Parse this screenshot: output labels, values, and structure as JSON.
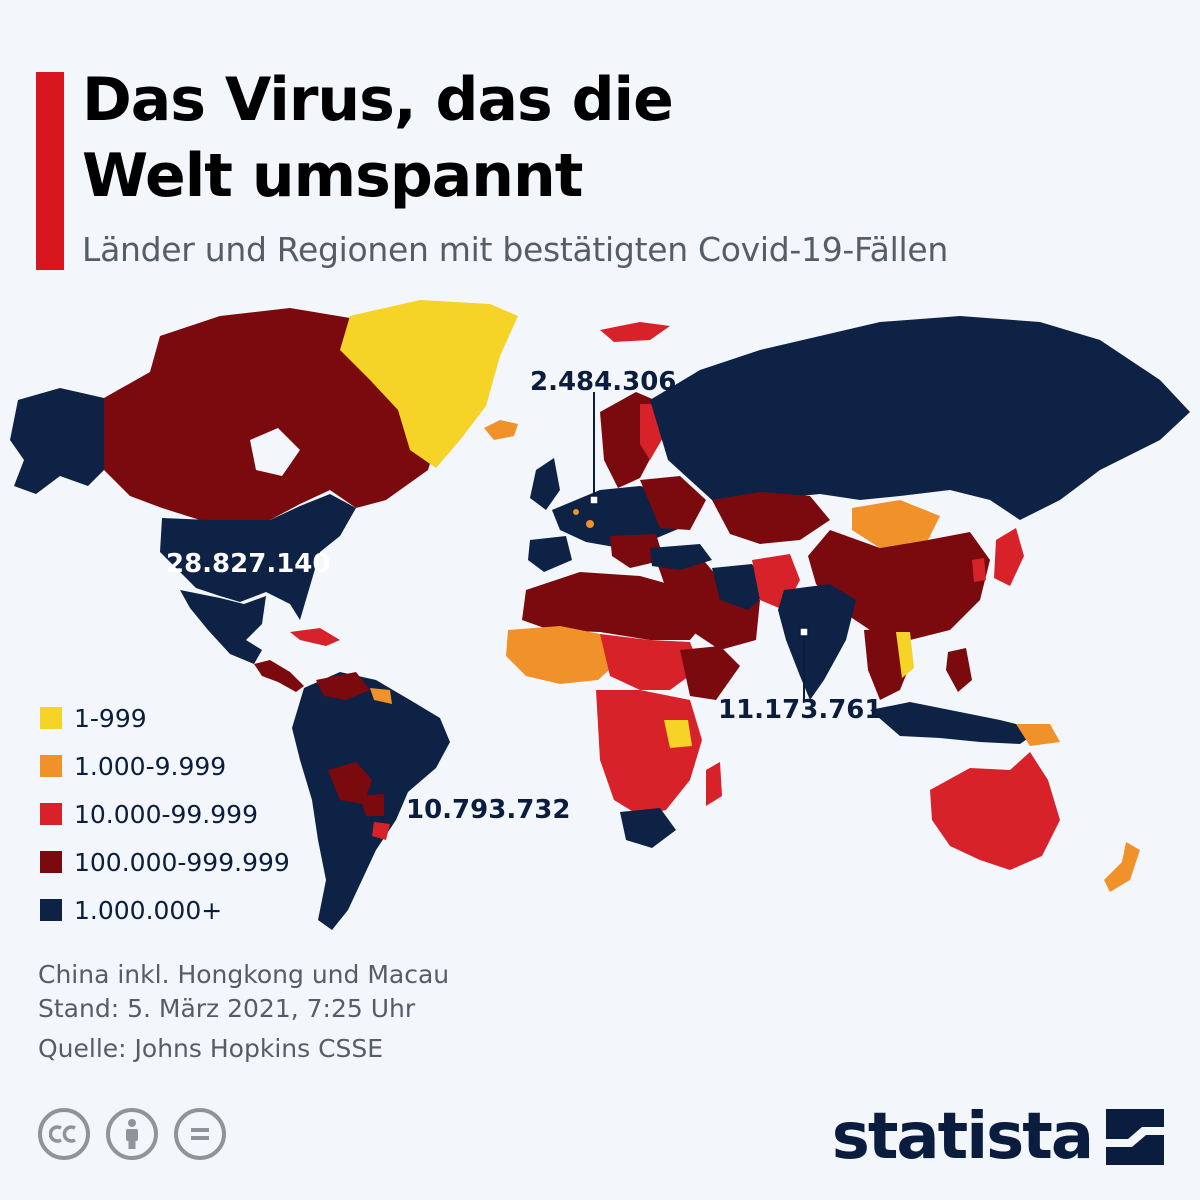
{
  "title": {
    "line1": "Das Virus, das die",
    "line2": "Welt umspannt"
  },
  "subtitle": "Länder und Regionen mit bestätigten Covid-19-Fällen",
  "colors": {
    "accent": "#d7161f",
    "range_1": "#f5d327",
    "range_2": "#f0912a",
    "range_3": "#d8222a",
    "range_4": "#7b0a0f",
    "range_5": "#0d2245",
    "no_data": "#cfd3d7"
  },
  "legend": [
    {
      "label": "1-999",
      "color": "#f5d327"
    },
    {
      "label": "1.000-9.999",
      "color": "#f0912a"
    },
    {
      "label": "10.000-99.999",
      "color": "#d8222a"
    },
    {
      "label": "100.000-999.999",
      "color": "#7b0a0f"
    },
    {
      "label": "1.000.000+",
      "color": "#0d2245"
    }
  ],
  "callouts": {
    "europe": "2.484.306",
    "usa": "28.827.140",
    "india": "11.173.761",
    "brazil": "10.793.732"
  },
  "notes": {
    "china": "China inkl. Hongkong und Macau",
    "date": "Stand: 5. März 2021, 7:25 Uhr",
    "source": "Quelle: Johns Hopkins CSSE"
  },
  "brand": {
    "name": "statista"
  },
  "license_icons": [
    "cc-icon",
    "attribution-icon",
    "no-derivatives-icon"
  ]
}
